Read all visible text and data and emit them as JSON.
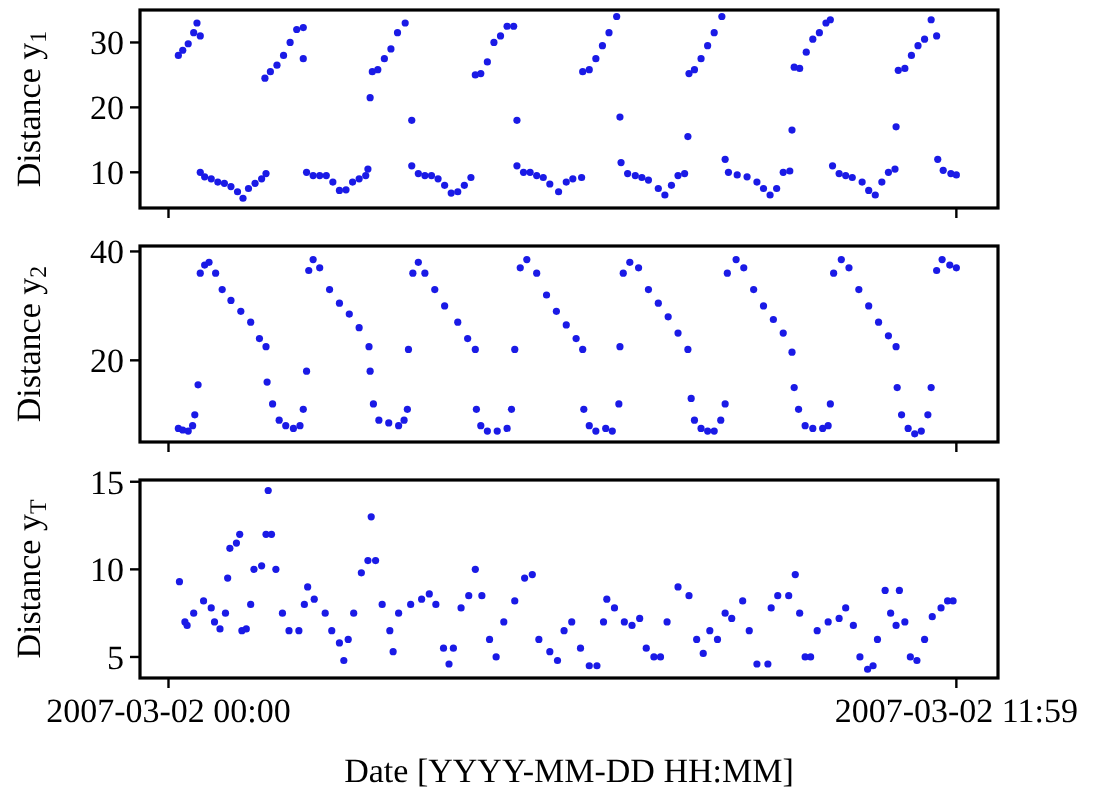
{
  "chart_data": [
    {
      "type": "scatter",
      "ylabel": "Distance y$_{1}$",
      "marker": "circle",
      "tick_labels": "y",
      "xlim": [
        "2007-03-01T23:34",
        "2007-03-02T12:37"
      ],
      "xticks": [
        {
          "value": "2007-03-02T00:00",
          "label": null
        },
        {
          "value": "2007-03-02T11:59",
          "label": null
        }
      ],
      "ylim": [
        4.5,
        35
      ],
      "yticks": [
        10,
        20,
        30
      ],
      "series": [
        {
          "color": "#1a1ae6",
          "x": [
            "2007-03-02T00:09",
            "2007-03-02T00:13",
            "2007-03-02T00:18",
            "2007-03-02T00:23",
            "2007-03-02T00:26",
            "2007-03-02T00:29",
            "2007-03-02T00:29",
            "2007-03-02T00:33",
            "2007-03-02T00:39",
            "2007-03-02T00:45",
            "2007-03-02T00:51",
            "2007-03-02T00:57",
            "2007-03-02T01:03",
            "2007-03-02T01:08",
            "2007-03-02T01:13",
            "2007-03-02T01:19",
            "2007-03-02T01:25",
            "2007-03-02T01:29",
            "2007-03-02T01:28",
            "2007-03-02T01:33",
            "2007-03-02T01:39",
            "2007-03-02T01:45",
            "2007-03-02T01:51",
            "2007-03-02T01:57",
            "2007-03-02T02:03",
            "2007-03-02T02:03",
            "2007-03-02T02:06",
            "2007-03-02T02:12",
            "2007-03-02T02:18",
            "2007-03-02T02:24",
            "2007-03-02T02:30",
            "2007-03-02T02:36",
            "2007-03-02T02:42",
            "2007-03-02T02:48",
            "2007-03-02T02:54",
            "2007-03-02T03:00",
            "2007-03-02T03:02",
            "2007-03-02T03:04",
            "2007-03-02T03:06",
            "2007-03-02T03:11",
            "2007-03-02T03:17",
            "2007-03-02T03:23",
            "2007-03-02T03:29",
            "2007-03-02T03:36",
            "2007-03-02T03:42",
            "2007-03-02T03:42",
            "2007-03-02T03:48",
            "2007-03-02T03:54",
            "2007-03-02T04:00",
            "2007-03-02T04:06",
            "2007-03-02T04:12",
            "2007-03-02T04:18",
            "2007-03-02T04:24",
            "2007-03-02T04:30",
            "2007-03-02T04:36",
            "2007-03-02T04:40",
            "2007-03-02T04:45",
            "2007-03-02T04:51",
            "2007-03-02T04:57",
            "2007-03-02T05:03",
            "2007-03-02T05:09",
            "2007-03-02T05:15",
            "2007-03-02T05:18",
            "2007-03-02T05:18",
            "2007-03-02T05:24",
            "2007-03-02T05:30",
            "2007-03-02T05:36",
            "2007-03-02T05:42",
            "2007-03-02T05:48",
            "2007-03-02T05:56",
            "2007-03-02T06:03",
            "2007-03-02T06:09",
            "2007-03-02T06:17",
            "2007-03-02T06:18",
            "2007-03-02T06:24",
            "2007-03-02T06:30",
            "2007-03-02T06:36",
            "2007-03-02T06:42",
            "2007-03-02T06:49",
            "2007-03-02T06:52",
            "2007-03-02T06:53",
            "2007-03-02T06:59",
            "2007-03-02T07:06",
            "2007-03-02T07:12",
            "2007-03-02T07:18",
            "2007-03-02T07:27",
            "2007-03-02T07:33",
            "2007-03-02T07:39",
            "2007-03-02T07:45",
            "2007-03-02T07:51",
            "2007-03-02T07:54",
            "2007-03-02T07:55",
            "2007-03-02T08:00",
            "2007-03-02T08:06",
            "2007-03-02T08:12",
            "2007-03-02T08:18",
            "2007-03-02T08:25",
            "2007-03-02T08:28",
            "2007-03-02T08:31",
            "2007-03-02T08:39",
            "2007-03-02T08:48",
            "2007-03-02T08:57",
            "2007-03-02T09:03",
            "2007-03-02T09:09",
            "2007-03-02T09:15",
            "2007-03-02T09:21",
            "2007-03-02T09:27",
            "2007-03-02T09:29",
            "2007-03-02T09:31",
            "2007-03-02T09:36",
            "2007-03-02T09:42",
            "2007-03-02T09:48",
            "2007-03-02T09:54",
            "2007-03-02T10:00",
            "2007-03-02T10:04",
            "2007-03-02T10:06",
            "2007-03-02T10:12",
            "2007-03-02T10:18",
            "2007-03-02T10:24",
            "2007-03-02T10:33",
            "2007-03-02T10:39",
            "2007-03-02T10:45",
            "2007-03-02T10:51",
            "2007-03-02T10:57",
            "2007-03-02T11:03",
            "2007-03-02T11:04",
            "2007-03-02T11:06",
            "2007-03-02T11:12",
            "2007-03-02T11:18",
            "2007-03-02T11:24",
            "2007-03-02T11:30",
            "2007-03-02T11:36",
            "2007-03-02T11:41",
            "2007-03-02T11:42",
            "2007-03-02T11:47",
            "2007-03-02T11:54",
            "2007-03-02T11:59"
          ],
          "values": [
            28,
            28.8,
            29.8,
            31.5,
            33,
            31,
            10,
            9.3,
            9,
            8.5,
            8.3,
            7.8,
            7,
            6,
            7.5,
            8.3,
            9,
            9.8,
            24.5,
            25.5,
            26.5,
            28,
            30,
            32,
            32.3,
            27.5,
            10,
            9.5,
            9.5,
            9.5,
            8.5,
            7.2,
            7.3,
            8.5,
            9,
            9.5,
            10.5,
            21.5,
            25.5,
            25.8,
            27.5,
            29,
            31.5,
            33,
            18,
            11,
            9.8,
            9.5,
            9.5,
            9,
            8,
            6.8,
            7,
            8,
            9.2,
            25,
            25.2,
            27,
            30,
            31,
            32.5,
            32.5,
            18,
            11,
            10,
            10,
            9.5,
            9.2,
            8.2,
            7,
            8.5,
            9,
            9.2,
            25.5,
            25.8,
            27.5,
            29.5,
            31.5,
            34,
            18.5,
            11.5,
            9.8,
            9.5,
            9.2,
            8.8,
            7.5,
            6.5,
            8,
            9.5,
            9.8,
            15.5,
            25.2,
            25.8,
            27.5,
            29.5,
            31.5,
            34,
            12,
            10,
            9.6,
            9.3,
            8.5,
            7.5,
            6.5,
            7.5,
            10,
            10.2,
            16.5,
            26.2,
            26,
            28.5,
            30.5,
            31.5,
            33,
            33.5,
            11,
            9.8,
            9.5,
            9.2,
            8.5,
            7.2,
            6.5,
            8.5,
            10,
            10.5,
            17,
            25.7,
            26,
            28,
            29.5,
            30.5,
            33.5,
            31,
            12,
            10.3,
            9.8,
            9.6
          ]
        }
      ]
    },
    {
      "type": "scatter",
      "ylabel": "Distance y$_{2}$",
      "marker": "circle",
      "tick_labels": "y",
      "xlim": [
        "2007-03-01T23:34",
        "2007-03-02T12:37"
      ],
      "xticks": [
        {
          "value": "2007-03-02T00:00",
          "label": null
        },
        {
          "value": "2007-03-02T11:59",
          "label": null
        }
      ],
      "ylim": [
        5,
        41
      ],
      "yticks": [
        20,
        40
      ],
      "series": [
        {
          "color": "#1a1ae6",
          "x": [
            "2007-03-02T00:09",
            "2007-03-02T00:13",
            "2007-03-02T00:18",
            "2007-03-02T00:22",
            "2007-03-02T00:24",
            "2007-03-02T00:27",
            "2007-03-02T00:29",
            "2007-03-02T00:33",
            "2007-03-02T00:37",
            "2007-03-02T00:43",
            "2007-03-02T00:49",
            "2007-03-02T00:57",
            "2007-03-02T01:06",
            "2007-03-02T01:15",
            "2007-03-02T01:23",
            "2007-03-02T01:29",
            "2007-03-02T01:30",
            "2007-03-02T01:35",
            "2007-03-02T01:41",
            "2007-03-02T01:47",
            "2007-03-02T01:54",
            "2007-03-02T02:00",
            "2007-03-02T02:03",
            "2007-03-02T02:06",
            "2007-03-02T02:08",
            "2007-03-02T02:12",
            "2007-03-02T02:18",
            "2007-03-02T02:27",
            "2007-03-02T02:36",
            "2007-03-02T02:45",
            "2007-03-02T02:54",
            "2007-03-02T03:03",
            "2007-03-02T03:04",
            "2007-03-02T03:07",
            "2007-03-02T03:12",
            "2007-03-02T03:21",
            "2007-03-02T03:30",
            "2007-03-02T03:35",
            "2007-03-02T03:38",
            "2007-03-02T03:39",
            "2007-03-02T03:43",
            "2007-03-02T03:48",
            "2007-03-02T03:54",
            "2007-03-02T04:03",
            "2007-03-02T04:12",
            "2007-03-02T04:24",
            "2007-03-02T04:33",
            "2007-03-02T04:40",
            "2007-03-02T04:41",
            "2007-03-02T04:45",
            "2007-03-02T04:51",
            "2007-03-02T05:00",
            "2007-03-02T05:09",
            "2007-03-02T05:13",
            "2007-03-02T05:16",
            "2007-03-02T05:21",
            "2007-03-02T05:27",
            "2007-03-02T05:36",
            "2007-03-02T05:45",
            "2007-03-02T05:54",
            "2007-03-02T06:03",
            "2007-03-02T06:12",
            "2007-03-02T06:18",
            "2007-03-02T06:19",
            "2007-03-02T06:24",
            "2007-03-02T06:30",
            "2007-03-02T06:39",
            "2007-03-02T06:45",
            "2007-03-02T06:51",
            "2007-03-02T06:52",
            "2007-03-02T06:55",
            "2007-03-02T07:01",
            "2007-03-02T07:09",
            "2007-03-02T07:18",
            "2007-03-02T07:27",
            "2007-03-02T07:36",
            "2007-03-02T07:45",
            "2007-03-02T07:54",
            "2007-03-02T07:57",
            "2007-03-02T08:00",
            "2007-03-02T08:06",
            "2007-03-02T08:12",
            "2007-03-02T08:18",
            "2007-03-02T08:24",
            "2007-03-02T08:28",
            "2007-03-02T08:30",
            "2007-03-02T08:38",
            "2007-03-02T08:45",
            "2007-03-02T08:54",
            "2007-03-02T09:03",
            "2007-03-02T09:12",
            "2007-03-02T09:21",
            "2007-03-02T09:29",
            "2007-03-02T09:31",
            "2007-03-02T09:35",
            "2007-03-02T09:41",
            "2007-03-02T09:48",
            "2007-03-02T09:57",
            "2007-03-02T10:02",
            "2007-03-02T10:04",
            "2007-03-02T10:07",
            "2007-03-02T10:14",
            "2007-03-02T10:21",
            "2007-03-02T10:30",
            "2007-03-02T10:39",
            "2007-03-02T10:48",
            "2007-03-02T10:57",
            "2007-03-02T11:04",
            "2007-03-02T11:05",
            "2007-03-02T11:09",
            "2007-03-02T11:15",
            "2007-03-02T11:21",
            "2007-03-02T11:27",
            "2007-03-02T11:33",
            "2007-03-02T11:36",
            "2007-03-02T11:41",
            "2007-03-02T11:46",
            "2007-03-02T11:53",
            "2007-03-02T11:59"
          ],
          "values": [
            7.5,
            7.2,
            7,
            8,
            10,
            15.5,
            36,
            37.5,
            38,
            36,
            33,
            31,
            29,
            27,
            24,
            22.5,
            16,
            12,
            9,
            8,
            7.5,
            8,
            11,
            18,
            36.5,
            38.5,
            37,
            33,
            30.5,
            28.5,
            26,
            22.5,
            18,
            12,
            9,
            8.5,
            8,
            9,
            11,
            22,
            36,
            38,
            36,
            33,
            30,
            27,
            24,
            22,
            11,
            8,
            7,
            7,
            7.5,
            11,
            22,
            37,
            38.5,
            36,
            32,
            29,
            26.5,
            24,
            22,
            11,
            8,
            7,
            7.5,
            7,
            12,
            22.5,
            36,
            38,
            37,
            33,
            30.5,
            28,
            25,
            22,
            13,
            9,
            7.5,
            7,
            7,
            9,
            12,
            36,
            38.5,
            37,
            33,
            30,
            27.5,
            25,
            21.5,
            15,
            11,
            8,
            7.5,
            7.5,
            8,
            12,
            36,
            38.5,
            37,
            33,
            30,
            27,
            24.5,
            22.5,
            15,
            10,
            7.5,
            6.5,
            7,
            10,
            15,
            36.5,
            38.5,
            37.5,
            37
          ]
        }
      ]
    },
    {
      "type": "scatter",
      "ylabel": "Distance y$_{T}$",
      "xlabel": "Date [YYYY-MM-DD HH:MM]",
      "marker": "circle",
      "xlim": [
        "2007-03-01T23:34",
        "2007-03-02T12:37"
      ],
      "xticks": [
        {
          "value": "2007-03-02T00:00",
          "label": "2007-03-02 00:00"
        },
        {
          "value": "2007-03-02T11:59",
          "label": "2007-03-02 11:59"
        }
      ],
      "ylim": [
        3.8,
        15.1
      ],
      "yticks": [
        5,
        10,
        15
      ],
      "series": [
        {
          "color": "#1a1ae6",
          "x": [
            "2007-03-02T00:10",
            "2007-03-02T00:15",
            "2007-03-02T00:17",
            "2007-03-02T00:23",
            "2007-03-02T00:32",
            "2007-03-02T00:39",
            "2007-03-02T00:42",
            "2007-03-02T00:47",
            "2007-03-02T00:52",
            "2007-03-02T00:54",
            "2007-03-02T00:56",
            "2007-03-02T01:02",
            "2007-03-02T01:05",
            "2007-03-02T01:07",
            "2007-03-02T01:11",
            "2007-03-02T01:15",
            "2007-03-02T01:18",
            "2007-03-02T01:25",
            "2007-03-02T01:29",
            "2007-03-02T01:31",
            "2007-03-02T01:34",
            "2007-03-02T01:38",
            "2007-03-02T01:44",
            "2007-03-02T01:50",
            "2007-03-02T01:59",
            "2007-03-02T02:04",
            "2007-03-02T02:07",
            "2007-03-02T02:13",
            "2007-03-02T02:23",
            "2007-03-02T02:29",
            "2007-03-02T02:36",
            "2007-03-02T02:40",
            "2007-03-02T02:44",
            "2007-03-02T02:49",
            "2007-03-02T02:56",
            "2007-03-02T03:02",
            "2007-03-02T03:05",
            "2007-03-02T03:09",
            "2007-03-02T03:15",
            "2007-03-02T03:22",
            "2007-03-02T03:25",
            "2007-03-02T03:30",
            "2007-03-02T03:41",
            "2007-03-02T03:51",
            "2007-03-02T03:58",
            "2007-03-02T04:04",
            "2007-03-02T04:11",
            "2007-03-02T04:16",
            "2007-03-02T04:20",
            "2007-03-02T04:27",
            "2007-03-02T04:34",
            "2007-03-02T04:40",
            "2007-03-02T04:46",
            "2007-03-02T04:53",
            "2007-03-02T04:59",
            "2007-03-02T05:06",
            "2007-03-02T05:16",
            "2007-03-02T05:25",
            "2007-03-02T05:32",
            "2007-03-02T05:38",
            "2007-03-02T05:48",
            "2007-03-02T05:55",
            "2007-03-02T06:01",
            "2007-03-02T06:08",
            "2007-03-02T06:16",
            "2007-03-02T06:24",
            "2007-03-02T06:31",
            "2007-03-02T06:37",
            "2007-03-02T06:40",
            "2007-03-02T06:47",
            "2007-03-02T06:56",
            "2007-03-02T07:03",
            "2007-03-02T07:10",
            "2007-03-02T07:16",
            "2007-03-02T07:23",
            "2007-03-02T07:29",
            "2007-03-02T07:35",
            "2007-03-02T07:45",
            "2007-03-02T07:55",
            "2007-03-02T08:02",
            "2007-03-02T08:08",
            "2007-03-02T08:14",
            "2007-03-02T08:21",
            "2007-03-02T08:28",
            "2007-03-02T08:34",
            "2007-03-02T08:44",
            "2007-03-02T08:50",
            "2007-03-02T08:57",
            "2007-03-02T09:07",
            "2007-03-02T09:10",
            "2007-03-02T09:16",
            "2007-03-02T09:26",
            "2007-03-02T09:32",
            "2007-03-02T09:36",
            "2007-03-02T09:41",
            "2007-03-02T09:46",
            "2007-03-02T09:52",
            "2007-03-02T10:02",
            "2007-03-02T10:12",
            "2007-03-02T10:18",
            "2007-03-02T10:25",
            "2007-03-02T10:31",
            "2007-03-02T10:38",
            "2007-03-02T10:43",
            "2007-03-02T10:47",
            "2007-03-02T10:54",
            "2007-03-02T10:59",
            "2007-03-02T11:04",
            "2007-03-02T11:07",
            "2007-03-02T11:12",
            "2007-03-02T11:17",
            "2007-03-02T11:23",
            "2007-03-02T11:30",
            "2007-03-02T11:37",
            "2007-03-02T11:45",
            "2007-03-02T11:51",
            "2007-03-02T11:56"
          ],
          "values": [
            9.3,
            7,
            6.8,
            7.5,
            8.2,
            7.8,
            7,
            6.6,
            7.5,
            9.5,
            11.2,
            11.5,
            12,
            6.5,
            6.6,
            8,
            10,
            10.2,
            12,
            14.5,
            12,
            10,
            7.5,
            6.5,
            6.5,
            8,
            9,
            8.3,
            7.5,
            6.5,
            5.8,
            4.8,
            6,
            7.5,
            9.8,
            10.5,
            13,
            10.5,
            8,
            6.5,
            5.3,
            7.5,
            8,
            8.3,
            8.6,
            8,
            5.5,
            4.6,
            5.5,
            7.8,
            8.5,
            10,
            8.5,
            6,
            5,
            7,
            8.2,
            9.5,
            9.7,
            6,
            5.3,
            4.8,
            6.5,
            7,
            5.5,
            4.5,
            4.5,
            7,
            8.3,
            7.8,
            7,
            6.8,
            7.2,
            5.5,
            5,
            5,
            7,
            9,
            8.5,
            6,
            5.2,
            6.5,
            6,
            7.5,
            7.2,
            8.2,
            6.5,
            4.6,
            4.6,
            7.8,
            8.5,
            8.5,
            9.7,
            7.5,
            5,
            5,
            6.5,
            7,
            7.2,
            7.8,
            6.8,
            5,
            4.3,
            4.5,
            6,
            8.8,
            7.5,
            6.8,
            8.8,
            7,
            5,
            4.8,
            6,
            7.3,
            7.8,
            8.2,
            8.2
          ]
        }
      ]
    }
  ]
}
